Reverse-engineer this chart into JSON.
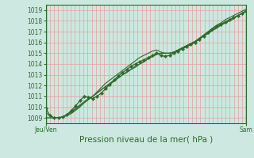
{
  "title": "Pression niveau de la mer( hPa )",
  "xlabel_left": "Jeu/Ven",
  "xlabel_right": "Sam",
  "ylabel_values": [
    1009,
    1010,
    1011,
    1012,
    1013,
    1014,
    1015,
    1016,
    1017,
    1018,
    1019
  ],
  "ylim": [
    1008.5,
    1019.5
  ],
  "xlim": [
    0,
    48
  ],
  "background_color": "#cce8e0",
  "grid_color_v": "#e8a0a0",
  "grid_color_h": "#e8a0a0",
  "axis_color": "#2d6a2d",
  "line_color": "#2d6a2d",
  "series_main": [
    1009.5,
    1009.2,
    1009.0,
    1009.0,
    1009.1,
    1009.2,
    1009.4,
    1009.7,
    1010.0,
    1010.4,
    1010.7,
    1011.0,
    1011.4,
    1011.8,
    1012.2,
    1012.5,
    1012.8,
    1013.1,
    1013.4,
    1013.7,
    1014.0,
    1014.3,
    1014.6,
    1014.8,
    1015.0,
    1015.2,
    1015.3,
    1015.1,
    1015.0,
    1015.0,
    1015.1,
    1015.3,
    1015.5,
    1015.7,
    1015.9,
    1016.1,
    1016.4,
    1016.7,
    1017.0,
    1017.3,
    1017.6,
    1017.8,
    1018.1,
    1018.3,
    1018.5,
    1018.7,
    1018.9,
    1019.1
  ],
  "series_wiggly": [
    1009.9,
    1009.2,
    1009.0,
    1009.0,
    1009.1,
    1009.3,
    1009.7,
    1010.1,
    1010.6,
    1011.0,
    1010.9,
    1010.8,
    1011.0,
    1011.3,
    1011.7,
    1012.1,
    1012.5,
    1012.9,
    1013.2,
    1013.5,
    1013.8,
    1014.0,
    1014.2,
    1014.4,
    1014.6,
    1014.8,
    1015.0,
    1014.8,
    1014.7,
    1014.8,
    1015.0,
    1015.2,
    1015.4,
    1015.6,
    1015.8,
    1016.0,
    1016.3,
    1016.6,
    1016.9,
    1017.2,
    1017.5,
    1017.7,
    1017.9,
    1018.1,
    1018.3,
    1018.5,
    1018.7,
    1018.9
  ],
  "series_s3": [
    1009.0,
    1009.0,
    1009.0,
    1009.0,
    1009.1,
    1009.3,
    1009.5,
    1009.8,
    1010.1,
    1010.4,
    1010.7,
    1011.0,
    1011.3,
    1011.6,
    1011.9,
    1012.2,
    1012.5,
    1012.7,
    1013.0,
    1013.3,
    1013.5,
    1013.8,
    1014.0,
    1014.2,
    1014.5,
    1014.7,
    1014.9,
    1015.0,
    1015.0,
    1015.0,
    1015.1,
    1015.3,
    1015.5,
    1015.7,
    1015.9,
    1016.1,
    1016.4,
    1016.6,
    1016.9,
    1017.1,
    1017.4,
    1017.6,
    1017.9,
    1018.1,
    1018.3,
    1018.5,
    1018.7,
    1019.0
  ],
  "series_s4": [
    1009.0,
    1009.0,
    1009.0,
    1009.0,
    1009.1,
    1009.3,
    1009.6,
    1009.9,
    1010.2,
    1010.5,
    1010.8,
    1011.0,
    1011.3,
    1011.6,
    1011.9,
    1012.1,
    1012.4,
    1012.7,
    1013.0,
    1013.2,
    1013.5,
    1013.7,
    1014.0,
    1014.2,
    1014.5,
    1014.7,
    1014.9,
    1015.0,
    1015.0,
    1015.0,
    1015.1,
    1015.3,
    1015.5,
    1015.7,
    1015.9,
    1016.1,
    1016.3,
    1016.6,
    1016.8,
    1017.1,
    1017.3,
    1017.6,
    1017.8,
    1018.0,
    1018.2,
    1018.5,
    1018.7,
    1018.9
  ],
  "n_vgrid": 48,
  "fontsize_ticks": 5.5,
  "fontsize_axis_label": 7.5
}
